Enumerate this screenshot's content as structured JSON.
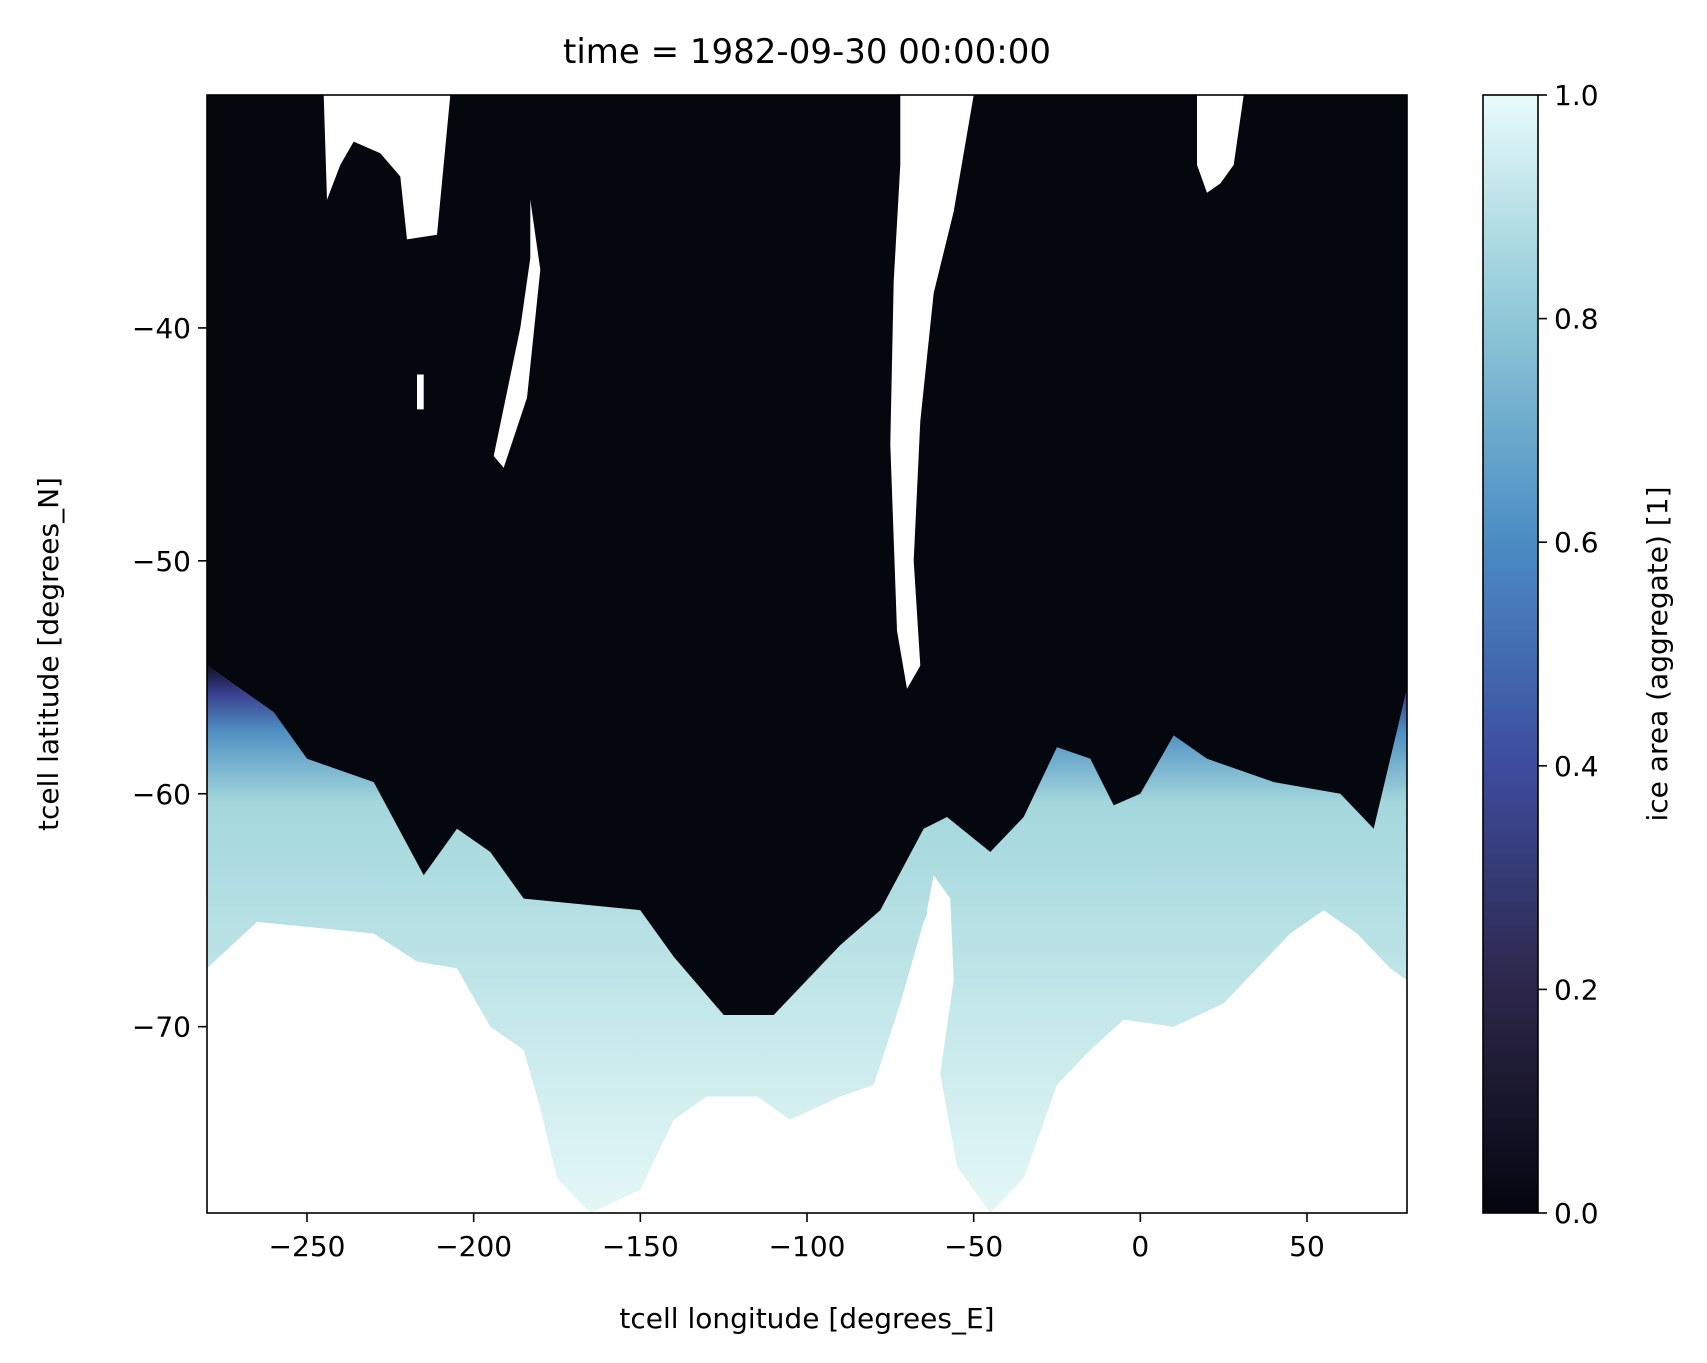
{
  "chart_data": {
    "type": "heatmap",
    "title": "time = 1982-09-30 00:00:00",
    "xlabel": "tcell longitude [degrees_E]",
    "ylabel": "tcell latitude [degrees_N]",
    "xlim": [
      -280,
      80
    ],
    "ylim": [
      -78,
      -30
    ],
    "xticks": [
      -250,
      -200,
      -150,
      -100,
      -50,
      0,
      50
    ],
    "xtick_labels": [
      "−250",
      "−200",
      "−150",
      "−100",
      "−50",
      "0",
      "50"
    ],
    "yticks": [
      -40,
      -50,
      -60,
      -70
    ],
    "ytick_labels": [
      "−40",
      "−50",
      "−60",
      "−70"
    ],
    "grid": false,
    "colorbar": {
      "label": "ice area  (aggregate) [1]",
      "range": [
        0,
        1
      ],
      "ticks": [
        0.0,
        0.2,
        0.4,
        0.6,
        0.8,
        1.0
      ],
      "tick_labels": [
        "0.0",
        "0.2",
        "0.4",
        "0.6",
        "0.8",
        "1.0"
      ],
      "colormap": [
        "#04050f",
        "#2c2749",
        "#3d4c9e",
        "#4a8cc4",
        "#8ec8d6",
        "#e8fbfb"
      ]
    },
    "missing_color": "#ffffff",
    "ocean_color": "#05070f",
    "ice_edge": [
      [
        -280,
        -54.5
      ],
      [
        -260,
        -56.5
      ],
      [
        -250,
        -58.5
      ],
      [
        -230,
        -59.5
      ],
      [
        -215,
        -63.5
      ],
      [
        -205,
        -61.5
      ],
      [
        -195,
        -62.5
      ],
      [
        -185,
        -64.5
      ],
      [
        -150,
        -65
      ],
      [
        -140,
        -67
      ],
      [
        -125,
        -69.5
      ],
      [
        -110,
        -69.5
      ],
      [
        -90,
        -66.5
      ],
      [
        -78,
        -65
      ],
      [
        -65,
        -61.5
      ],
      [
        -58,
        -61
      ],
      [
        -45,
        -62.5
      ],
      [
        -35,
        -61
      ],
      [
        -25,
        -58
      ],
      [
        -15,
        -58.5
      ],
      [
        -8,
        -60.5
      ],
      [
        0,
        -60
      ],
      [
        10,
        -57.5
      ],
      [
        20,
        -58.5
      ],
      [
        40,
        -59.5
      ],
      [
        60,
        -60
      ],
      [
        70,
        -61.5
      ],
      [
        75,
        -58.5
      ],
      [
        80,
        -55.5
      ]
    ],
    "land_edge": [
      [
        -280,
        -67.5
      ],
      [
        -265,
        -65.5
      ],
      [
        -230,
        -66
      ],
      [
        -217,
        -67.2
      ],
      [
        -205,
        -67.5
      ],
      [
        -195,
        -70
      ],
      [
        -185,
        -71
      ],
      [
        -180,
        -73.5
      ],
      [
        -175,
        -76.5
      ],
      [
        -165,
        -78
      ],
      [
        -150,
        -77
      ],
      [
        -140,
        -74
      ],
      [
        -130,
        -73
      ],
      [
        -115,
        -73
      ],
      [
        -105,
        -74
      ],
      [
        -90,
        -73
      ],
      [
        -80,
        -72.5
      ],
      [
        -72,
        -69
      ],
      [
        -65,
        -65.5
      ],
      [
        -60,
        -64
      ],
      [
        -60,
        -72
      ],
      [
        -55,
        -76
      ],
      [
        -45,
        -78
      ],
      [
        -35,
        -76.5
      ],
      [
        -25,
        -72.5
      ],
      [
        -15,
        -71
      ],
      [
        -5,
        -69.7
      ],
      [
        10,
        -70
      ],
      [
        25,
        -69
      ],
      [
        35,
        -67.5
      ],
      [
        45,
        -66
      ],
      [
        55,
        -65
      ],
      [
        65,
        -66
      ],
      [
        75,
        -67.5
      ],
      [
        80,
        -68
      ]
    ],
    "peninsula_gap": [
      [
        -62,
        -63.5
      ],
      [
        -57,
        -64.5
      ],
      [
        -56,
        -68
      ],
      [
        -60,
        -72
      ],
      [
        -65,
        -69
      ],
      [
        -64,
        -65
      ]
    ],
    "missing_regions": [
      [
        [
          -245,
          -30
        ],
        [
          -207,
          -30
        ],
        [
          -211,
          -36
        ],
        [
          -220,
          -36.2
        ],
        [
          -222,
          -33.5
        ],
        [
          -228,
          -32.5
        ],
        [
          -236,
          -32
        ],
        [
          -240,
          -33
        ],
        [
          -244,
          -34.5
        ]
      ],
      [
        [
          -217,
          -42
        ],
        [
          -215,
          -42
        ],
        [
          -215,
          -43.5
        ],
        [
          -217,
          -43.5
        ]
      ],
      [
        [
          -183,
          -34.5
        ],
        [
          -180,
          -37.5
        ],
        [
          -184,
          -43
        ],
        [
          -191,
          -46
        ],
        [
          -194,
          -45.5
        ],
        [
          -186,
          -40
        ],
        [
          -183,
          -37
        ]
      ],
      [
        [
          -72,
          -30
        ],
        [
          -50,
          -30
        ],
        [
          -56,
          -35
        ],
        [
          -62,
          -38.5
        ],
        [
          -66,
          -44
        ],
        [
          -68,
          -50
        ],
        [
          -66,
          -54.5
        ],
        [
          -70,
          -55.5
        ],
        [
          -73,
          -53
        ],
        [
          -75,
          -45
        ],
        [
          -74,
          -38
        ],
        [
          -72,
          -33
        ]
      ],
      [
        [
          17,
          -30
        ],
        [
          31,
          -30
        ],
        [
          28,
          -33
        ],
        [
          24,
          -33.8
        ],
        [
          20,
          -34.2
        ],
        [
          17,
          -33
        ]
      ]
    ]
  }
}
